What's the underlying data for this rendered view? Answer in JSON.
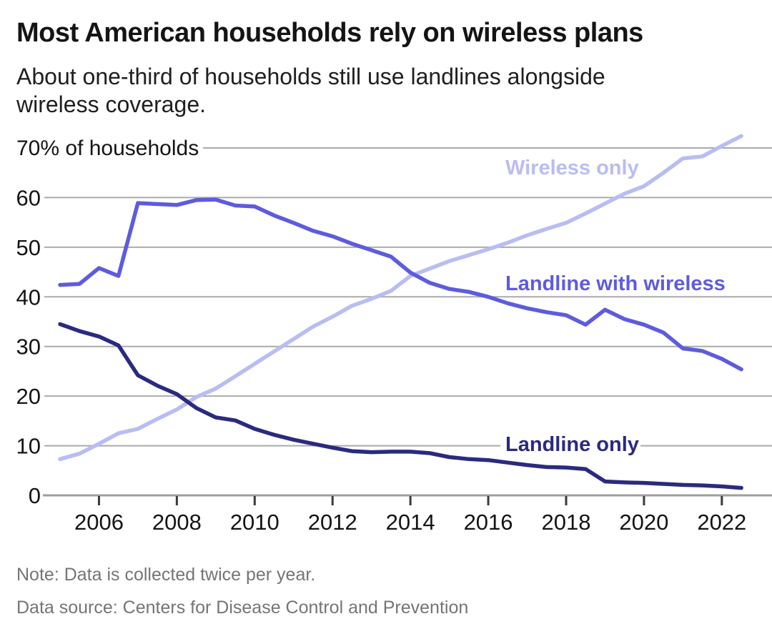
{
  "header": {
    "title": "Most American households rely on wireless plans",
    "subtitle": "About one-third of households still use landlines alongside wireless coverage."
  },
  "footer": {
    "note": "Note: Data is collected twice per year.",
    "source": "Data source: Centers for Disease Control and Prevention"
  },
  "chart_data": {
    "type": "line",
    "title": "Most American households rely on wireless plans",
    "y_axis_label": "70% of households",
    "xlim": [
      2005,
      2022.5
    ],
    "ylim": [
      0,
      70
    ],
    "grid": true,
    "legend_position": "inline-labels",
    "x_ticks": [
      2006,
      2008,
      2010,
      2012,
      2014,
      2016,
      2018,
      2020,
      2022
    ],
    "y_ticks": [
      0,
      10,
      20,
      30,
      40,
      50,
      60
    ],
    "y_top_gridline": 70,
    "colors": {
      "grid": "#ababab",
      "axis": "#9e9e9e",
      "tick": "#3a3a3a",
      "text": "#141414",
      "muted": "#757575"
    },
    "x": [
      2005,
      2005.5,
      2006,
      2006.5,
      2007,
      2007.5,
      2008,
      2008.5,
      2009,
      2009.5,
      2010,
      2010.5,
      2011,
      2011.5,
      2012,
      2012.5,
      2013,
      2013.5,
      2014,
      2014.5,
      2015,
      2015.5,
      2016,
      2016.5,
      2017,
      2017.5,
      2018,
      2018.5,
      2019,
      2019.5,
      2020,
      2020.5,
      2021,
      2021.5,
      2022,
      2022.5
    ],
    "series": [
      {
        "name": "Wireless only",
        "color": "#b9bdf2",
        "values": [
          7.3,
          8.4,
          10.4,
          12.5,
          13.4,
          15.4,
          17.3,
          19.8,
          21.5,
          24.0,
          26.5,
          29.0,
          31.5,
          34.0,
          36.0,
          38.2,
          39.6,
          41.2,
          44.2,
          45.7,
          47.2,
          48.4,
          49.6,
          50.9,
          52.4,
          53.7,
          54.9,
          56.8,
          58.8,
          60.8,
          62.3,
          65.0,
          67.9,
          68.3,
          70.4,
          72.4
        ],
        "label": {
          "x": 707,
          "y": 244,
          "bg": false,
          "bg_rect": null
        }
      },
      {
        "name": "Landline with wireless",
        "color": "#5e5bdf",
        "values": [
          42.4,
          42.6,
          45.8,
          44.2,
          58.9,
          58.7,
          58.5,
          59.5,
          59.6,
          58.4,
          58.2,
          56.4,
          54.9,
          53.3,
          52.2,
          50.7,
          49.4,
          48.1,
          44.9,
          42.8,
          41.6,
          41.0,
          40.0,
          38.7,
          37.7,
          36.9,
          36.3,
          34.4,
          37.4,
          35.5,
          34.4,
          32.8,
          29.6,
          29.1,
          27.5,
          25.4
        ],
        "label": {
          "x": 707,
          "y": 406,
          "bg": false,
          "bg_rect": null
        }
      },
      {
        "name": "Landline only",
        "color": "#2b2a80",
        "values": [
          34.5,
          33.1,
          32.0,
          30.2,
          24.2,
          22.1,
          20.4,
          17.6,
          15.7,
          15.1,
          13.4,
          12.2,
          11.2,
          10.4,
          9.6,
          8.9,
          8.7,
          8.8,
          8.8,
          8.5,
          7.7,
          7.3,
          7.1,
          6.6,
          6.1,
          5.7,
          5.6,
          5.3,
          2.8,
          2.6,
          2.5,
          2.3,
          2.1,
          2.0,
          1.8,
          1.5
        ],
        "label": {
          "x": 707,
          "y": 631,
          "bg": true,
          "bg_rect": [
            700,
            604,
            196,
            32
          ]
        }
      }
    ]
  }
}
